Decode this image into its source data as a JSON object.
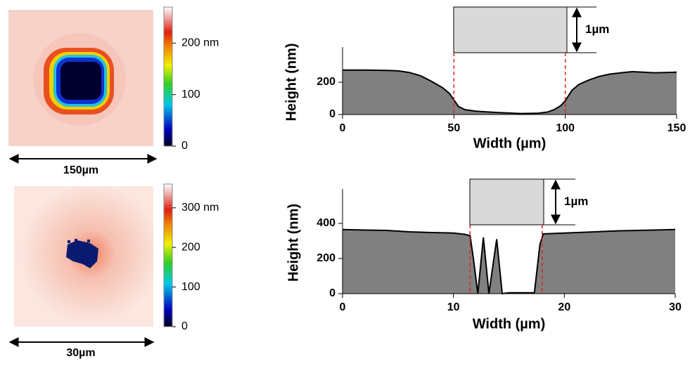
{
  "chart_data": [
    {
      "type": "heatmap",
      "scale_label": "150µm",
      "colorbar": {
        "lim": [
          0,
          270
        ],
        "ticks": [
          0,
          100,
          {
            "value": 200,
            "label": "200 nm"
          }
        ]
      }
    },
    {
      "type": "area",
      "xlabel": "Width (µm)",
      "ylabel": "Height (nm)",
      "annotation": "1µm",
      "color": "#808080",
      "x": [
        0,
        10,
        20,
        25,
        30,
        35,
        40,
        45,
        48,
        50,
        52,
        55,
        60,
        70,
        80,
        88,
        92,
        95,
        98,
        100,
        103,
        106,
        110,
        115,
        120,
        125,
        130,
        135,
        140,
        145,
        150
      ],
      "values": [
        275,
        275,
        273,
        270,
        260,
        240,
        205,
        165,
        130,
        90,
        50,
        30,
        20,
        12,
        6,
        8,
        15,
        30,
        55,
        85,
        150,
        185,
        210,
        235,
        250,
        258,
        265,
        262,
        258,
        260,
        262
      ],
      "markers": [
        50,
        100
      ],
      "xlim": [
        0,
        150
      ],
      "xticks": [
        0,
        50,
        100,
        150
      ],
      "ylim": [
        0,
        400
      ],
      "yticks": [
        0,
        200
      ]
    },
    {
      "type": "heatmap",
      "scale_label": "30µm",
      "colorbar": {
        "lim": [
          0,
          360
        ],
        "ticks": [
          0,
          100,
          200,
          {
            "value": 300,
            "label": "300 nm"
          }
        ]
      }
    },
    {
      "type": "area",
      "xlabel": "Width (µm)",
      "ylabel": "Height (nm)",
      "annotation": "1µm",
      "color": "#808080",
      "x": [
        0,
        2,
        4,
        6,
        8,
        10,
        11,
        11.5,
        11.8,
        12.2,
        12.7,
        13.2,
        13.9,
        14.4,
        15,
        17.3,
        17.8,
        18.1,
        20,
        22,
        25,
        28,
        30
      ],
      "values": [
        365,
        362,
        360,
        352,
        348,
        345,
        338,
        330,
        200,
        0,
        320,
        0,
        310,
        0,
        5,
        5,
        280,
        340,
        345,
        350,
        358,
        362,
        365
      ],
      "markers": [
        11.5,
        18
      ],
      "xlim": [
        0,
        30
      ],
      "xticks": [
        0,
        10,
        20,
        30
      ],
      "ylim": [
        0,
        580
      ],
      "yticks": [
        0,
        200,
        400
      ]
    }
  ]
}
